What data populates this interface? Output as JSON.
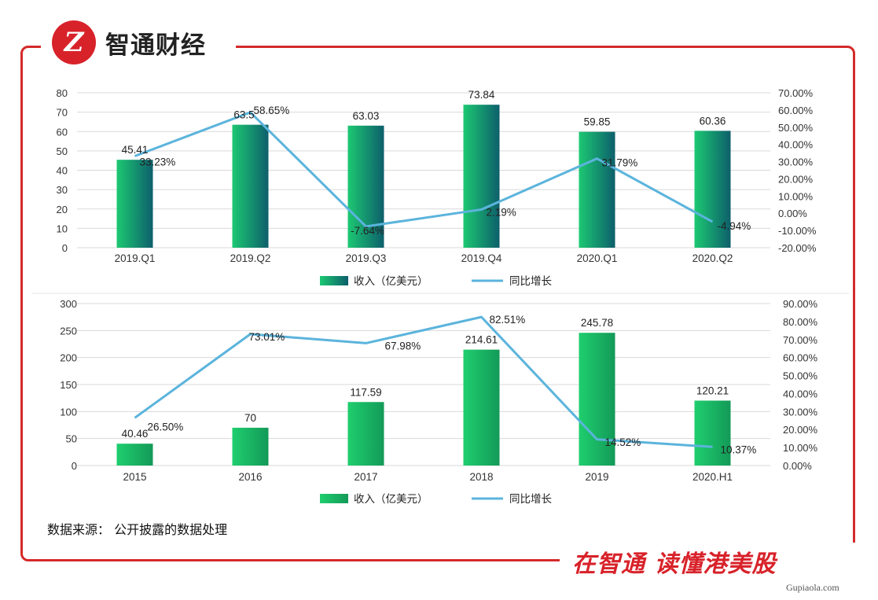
{
  "brand": {
    "logo_mark": "Z",
    "name": "智通财经"
  },
  "colors": {
    "frame": "#d42a2a",
    "bar_light": "#19c56a",
    "bar_dark": "#0e6b6a",
    "bar_mid": "#17a865",
    "line": "#5bb4dc"
  },
  "legend": {
    "bar": "收入（亿美元）",
    "line": "同比增长"
  },
  "chart_data": [
    {
      "type": "bar",
      "categories": [
        "2019.Q1",
        "2019.Q2",
        "2019.Q3",
        "2019.Q4",
        "2020.Q1",
        "2020.Q2"
      ],
      "series": [
        {
          "name": "收入（亿美元）",
          "type": "bar",
          "axis": "left",
          "values": [
            45.41,
            63.5,
            63.03,
            73.84,
            59.85,
            60.36
          ],
          "labels": [
            "45.41",
            "63.5",
            "63.03",
            "73.84",
            "59.85",
            "60.36"
          ]
        },
        {
          "name": "同比增长",
          "type": "line",
          "axis": "right",
          "values": [
            33.23,
            58.65,
            -7.64,
            2.19,
            31.79,
            -4.94
          ],
          "labels": [
            "33.23%",
            "58.65%",
            "-7.64%",
            "2.19%",
            "31.79%",
            "-4.94%"
          ]
        }
      ],
      "y_left": {
        "range": [
          0,
          80
        ],
        "ticks": [
          "0",
          "10",
          "20",
          "30",
          "40",
          "50",
          "60",
          "70",
          "80"
        ]
      },
      "y_right": {
        "range": [
          -20,
          70
        ],
        "ticks": [
          "-20.00%",
          "-10.00%",
          "0.00%",
          "10.00%",
          "20.00%",
          "30.00%",
          "40.00%",
          "50.00%",
          "60.00%",
          "70.00%"
        ]
      },
      "grid": true,
      "legend_position": "bottom"
    },
    {
      "type": "bar",
      "categories": [
        "2015",
        "2016",
        "2017",
        "2018",
        "2019",
        "2020.H1"
      ],
      "series": [
        {
          "name": "收入（亿美元）",
          "type": "bar",
          "axis": "left",
          "values": [
            40.46,
            70,
            117.59,
            214.61,
            245.78,
            120.21
          ],
          "labels": [
            "40.46",
            "70",
            "117.59",
            "214.61",
            "245.78",
            "120.21"
          ]
        },
        {
          "name": "同比增长",
          "type": "line",
          "axis": "right",
          "values": [
            26.5,
            73.01,
            67.98,
            82.51,
            14.52,
            10.37
          ],
          "labels": [
            "26.50%",
            "73.01%",
            "67.98%",
            "82.51%",
            "14.52%",
            "10.37%"
          ]
        }
      ],
      "y_left": {
        "range": [
          0,
          300
        ],
        "ticks": [
          "0",
          "50",
          "100",
          "150",
          "200",
          "250",
          "300"
        ]
      },
      "y_right": {
        "range": [
          0,
          90
        ],
        "ticks": [
          "0.00%",
          "10.00%",
          "20.00%",
          "30.00%",
          "40.00%",
          "50.00%",
          "60.00%",
          "70.00%",
          "80.00%",
          "90.00%"
        ]
      },
      "grid": true,
      "legend_position": "bottom"
    }
  ],
  "source_note": "数据来源： 公开披露的数据处理",
  "slogan": "在智通  读懂港美股",
  "watermark": "Gupiaola.com"
}
